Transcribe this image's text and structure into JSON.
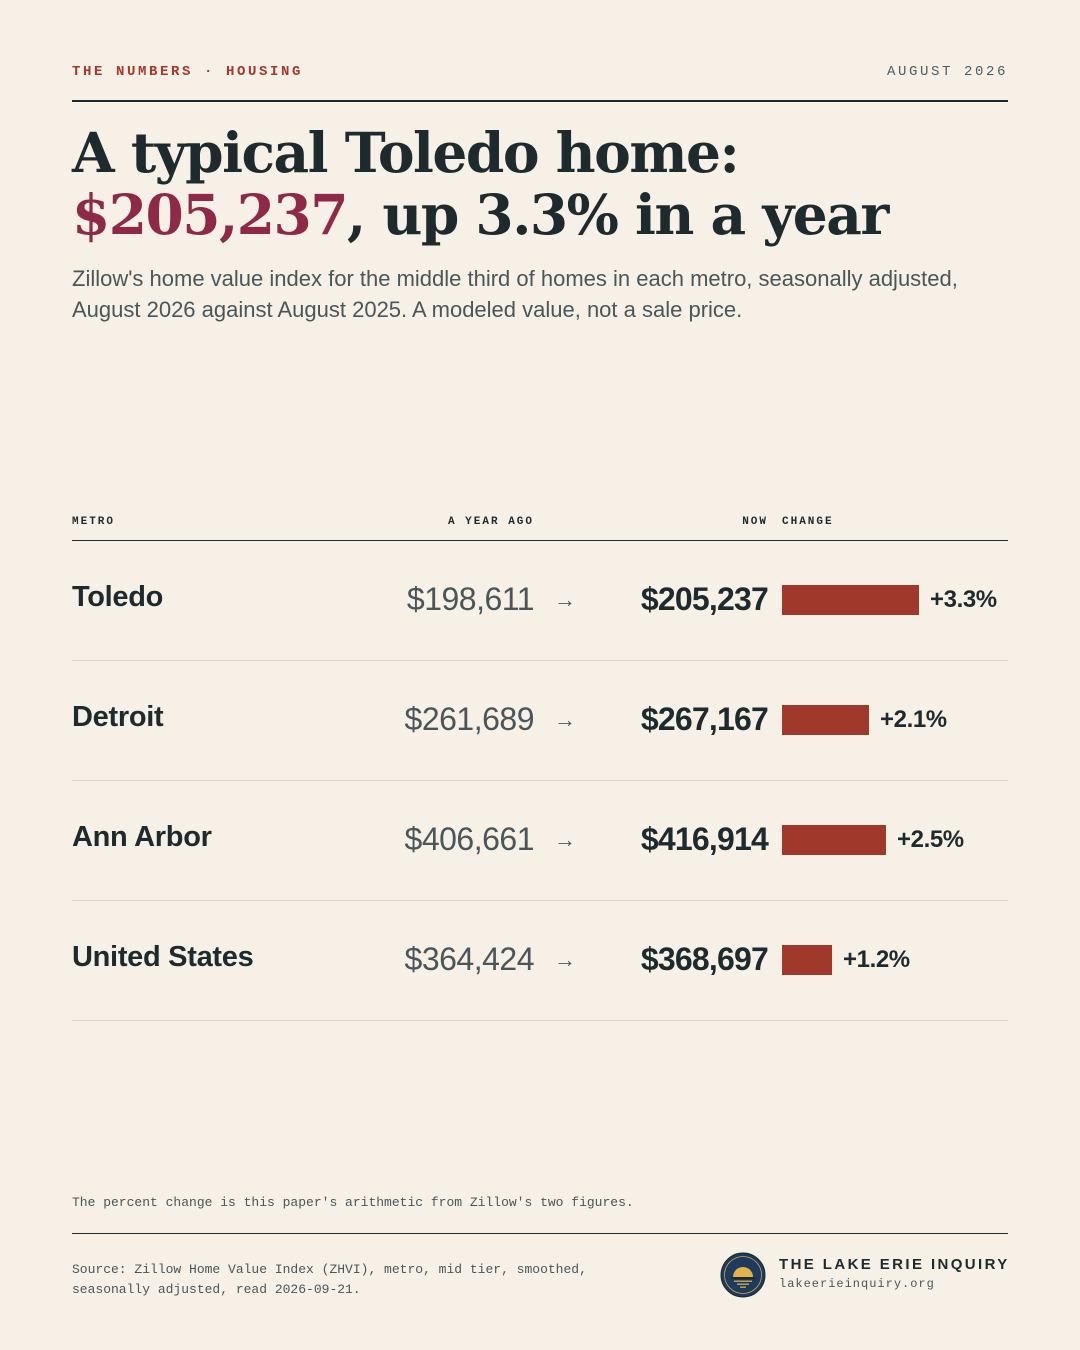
{
  "header": {
    "kicker": "THE NUMBERS · HOUSING",
    "date": "AUGUST 2026"
  },
  "headline": {
    "line1": "A typical Toledo home:",
    "value": "$205,237",
    "rest": ", up 3.3% in a year"
  },
  "dek": "Zillow's home value index for the middle third of homes in each metro, seasonally adjusted, August 2026 against August 2025. A modeled value, not a sale price.",
  "table": {
    "columns": {
      "metro": "METRO",
      "year_ago": "A YEAR AGO",
      "now": "NOW",
      "change": "CHANGE"
    },
    "arrow": "→"
  },
  "chart_data": {
    "type": "table",
    "columns": [
      "METRO",
      "A YEAR AGO",
      "NOW",
      "CHANGE"
    ],
    "rows": [
      {
        "metro": "Toledo",
        "year_ago": "$198,611",
        "now": "$205,237",
        "change": 3.3,
        "change_label": "+3.3%"
      },
      {
        "metro": "Detroit",
        "year_ago": "$261,689",
        "now": "$267,167",
        "change": 2.1,
        "change_label": "+2.1%"
      },
      {
        "metro": "Ann Arbor",
        "year_ago": "$406,661",
        "now": "$416,914",
        "change": 2.5,
        "change_label": "+2.5%"
      },
      {
        "metro": "United States",
        "year_ago": "$364,424",
        "now": "$368,697",
        "change": 1.2,
        "change_label": "+1.2%"
      }
    ],
    "bar_color": "#a0382b",
    "change_max": 3.3
  },
  "footer": {
    "note": "The percent change is this paper's arithmetic from Zillow's two figures.",
    "source": "Source: Zillow Home Value Index (ZHVI), metro, mid tier, smoothed, seasonally adjusted, read 2026-09-21.",
    "brand": "THE LAKE ERIE INQUIRY",
    "url": "lakeerieinquiry.org"
  },
  "colors": {
    "background": "#f6f0e6",
    "ink": "#1d2a2e",
    "accent_red": "#a3382b",
    "headline_accent": "#8e2a48"
  }
}
